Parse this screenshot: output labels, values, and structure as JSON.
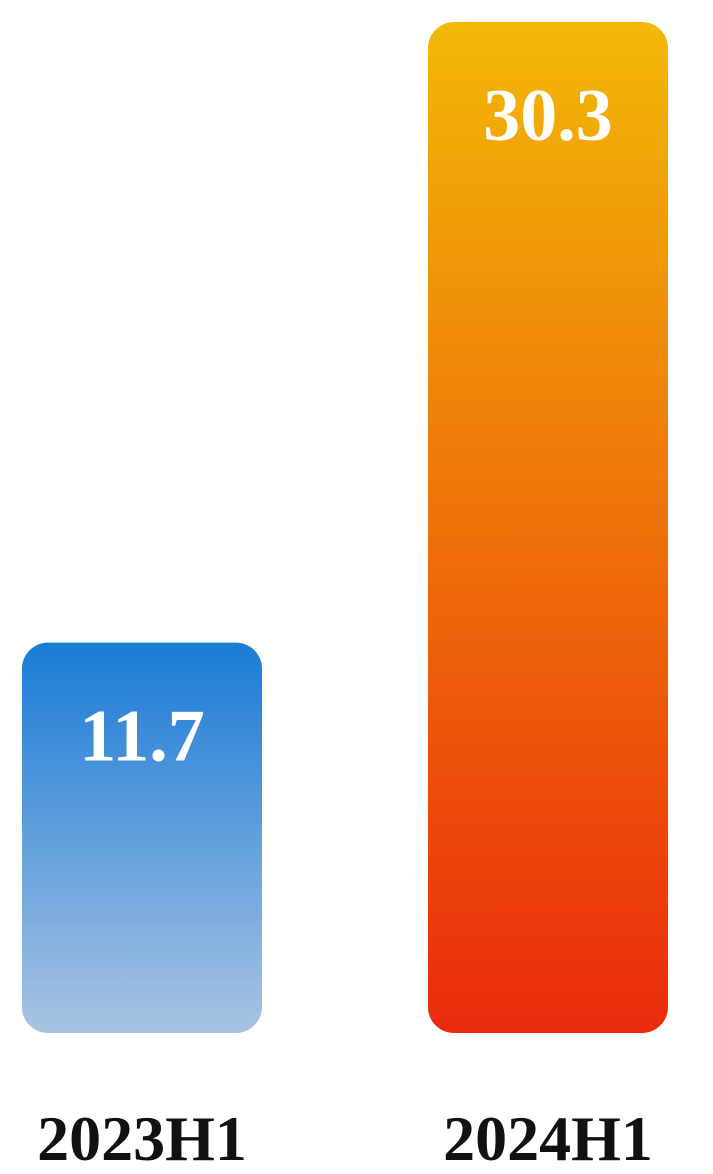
{
  "chart_data": {
    "type": "bar",
    "categories": [
      "2023H1",
      "2024H1"
    ],
    "values": [
      11.7,
      30.3
    ],
    "data_labels": [
      "11.7",
      "30.3"
    ],
    "title": "",
    "xlabel": "",
    "ylabel": "",
    "ylim": [
      0,
      30.3
    ],
    "grid": false,
    "legend": "none",
    "colors": {
      "bar_0_top": "#1a7bd6",
      "bar_0_bottom": "#a8c3e2",
      "bar_1_top": "#f2b807",
      "bar_1_bottom": "#ea2a0c",
      "value_label": "#ffffff",
      "category_label": "#111111"
    }
  }
}
